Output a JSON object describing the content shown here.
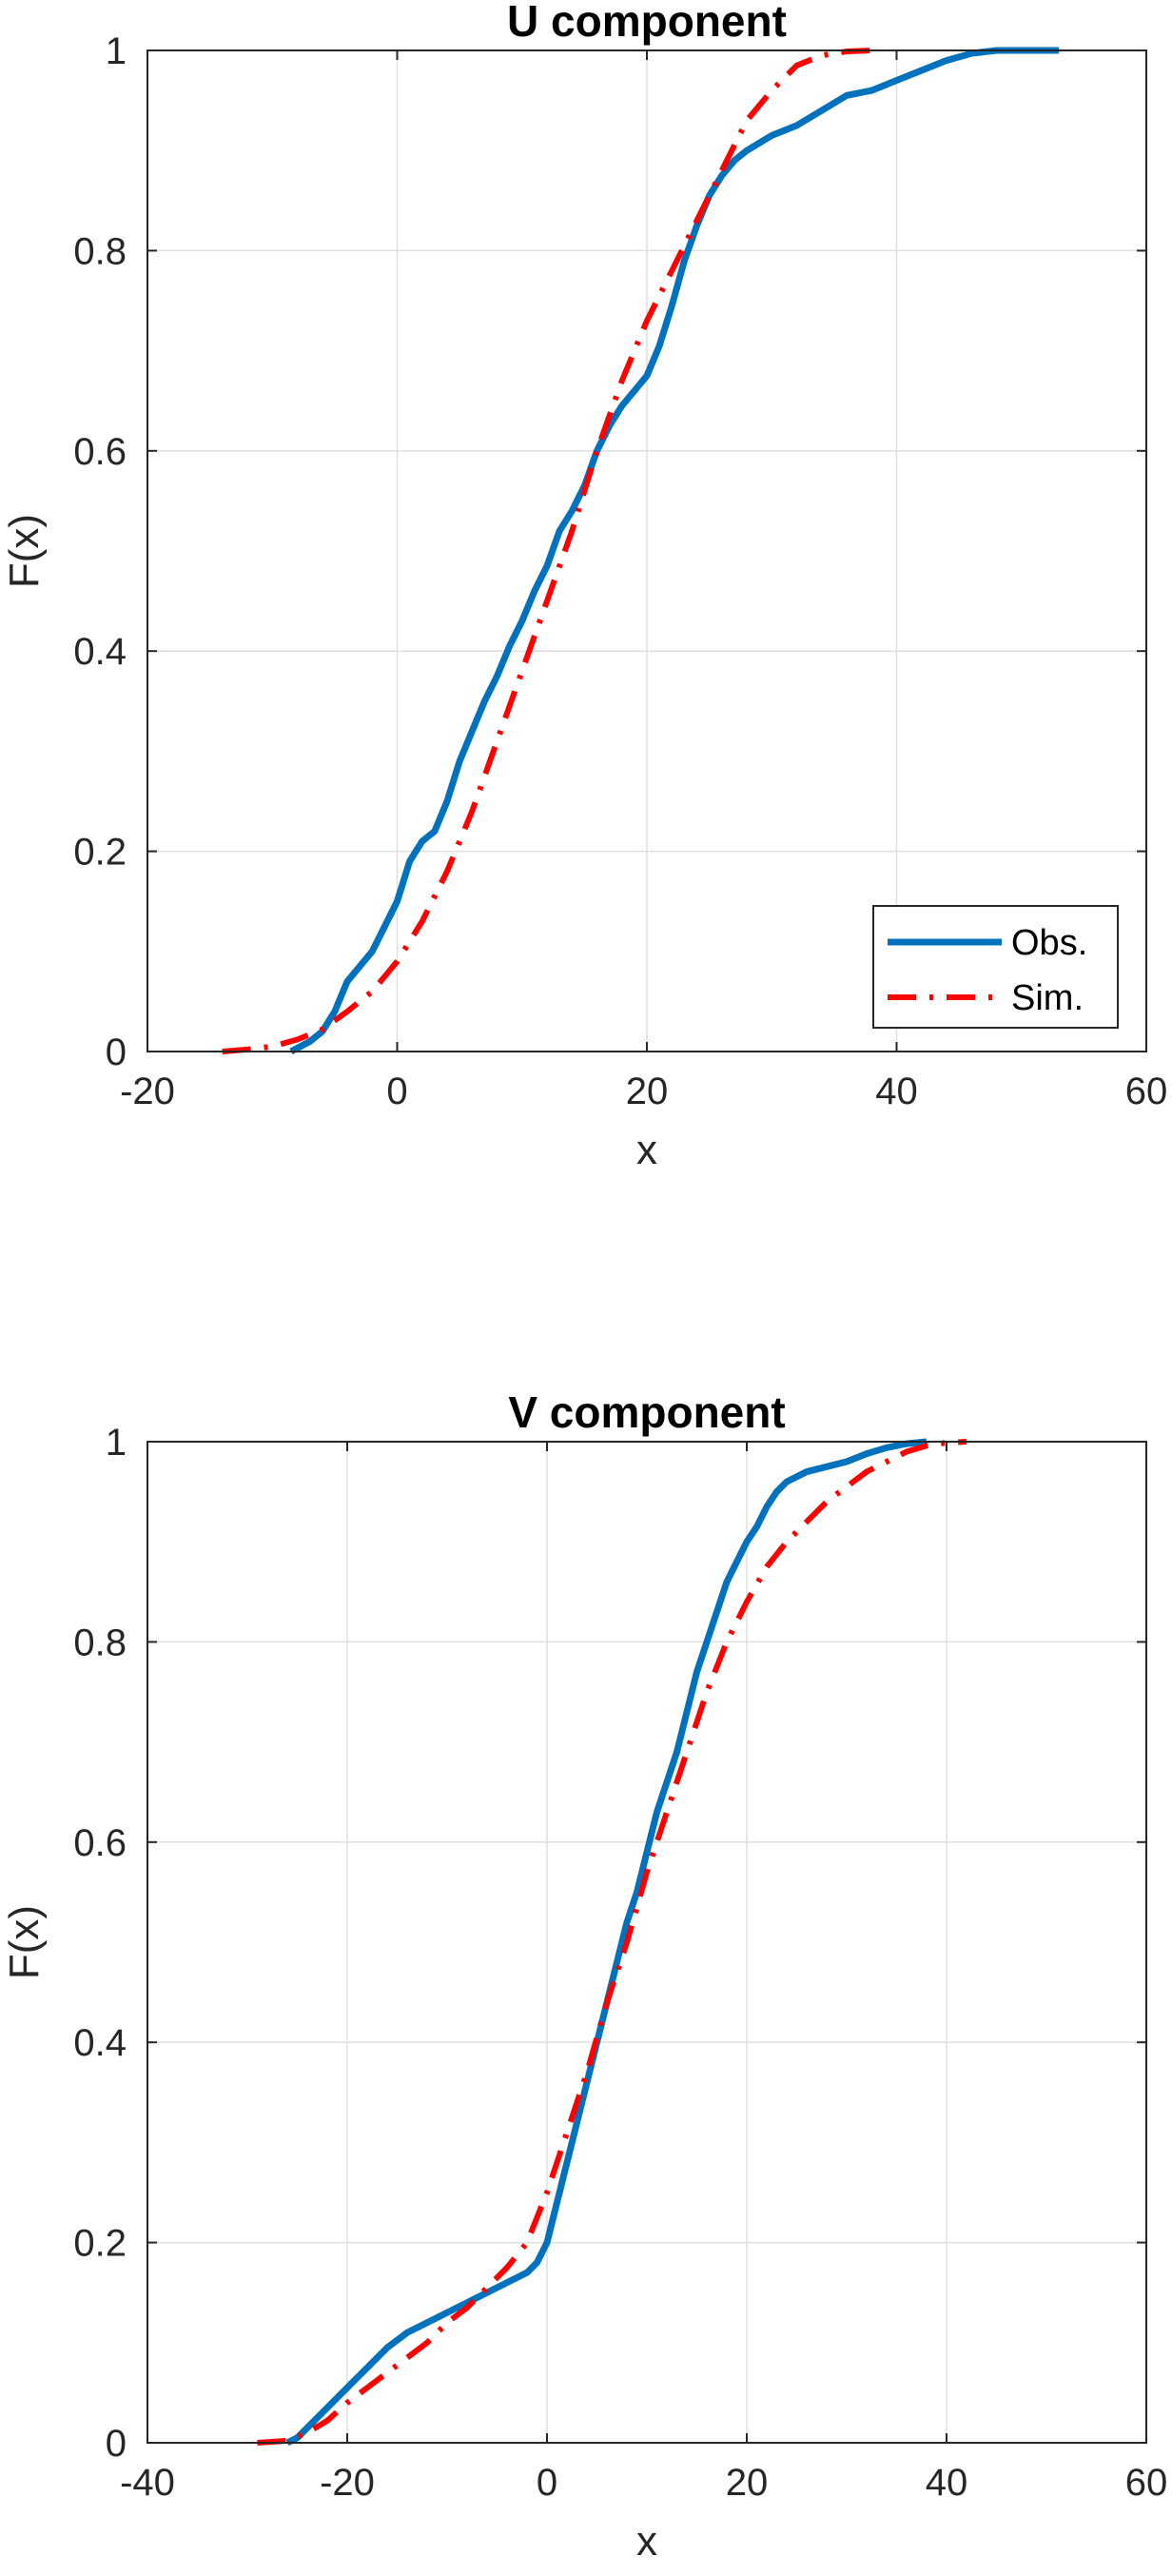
{
  "chart_data": [
    {
      "type": "line",
      "title": "U component",
      "xlabel": "x",
      "ylabel": "F(x)",
      "xlim": [
        -20,
        60
      ],
      "ylim": [
        0,
        1
      ],
      "xticks": [
        -20,
        0,
        20,
        40,
        60
      ],
      "yticks": [
        0,
        0.2,
        0.4,
        0.6,
        0.8,
        1
      ],
      "xtick_labels": [
        "-20",
        "0",
        "20",
        "40",
        "60"
      ],
      "ytick_labels": [
        "0",
        "0.2",
        "0.4",
        "0.6",
        "0.8",
        "1"
      ],
      "grid": true,
      "legend": {
        "show": true,
        "position": "bottom-right"
      },
      "series": [
        {
          "name": "Obs.",
          "color": "#0072BD",
          "style": "solid",
          "x": [
            -8.5,
            -7,
            -6,
            -5,
            -4,
            -3,
            -2,
            -1,
            0,
            1,
            2,
            3,
            4,
            5,
            6,
            7,
            8,
            9,
            10,
            11,
            12,
            13,
            14,
            15,
            16,
            17,
            18,
            19,
            20,
            21,
            22,
            23,
            24,
            25,
            26,
            27,
            28,
            30,
            32,
            34,
            36,
            38,
            40,
            42,
            44,
            46,
            48,
            50,
            53
          ],
          "y": [
            0,
            0.01,
            0.02,
            0.04,
            0.07,
            0.085,
            0.1,
            0.125,
            0.15,
            0.19,
            0.21,
            0.22,
            0.25,
            0.29,
            0.32,
            0.35,
            0.375,
            0.405,
            0.43,
            0.46,
            0.485,
            0.52,
            0.54,
            0.565,
            0.6,
            0.625,
            0.645,
            0.66,
            0.675,
            0.705,
            0.745,
            0.79,
            0.825,
            0.855,
            0.875,
            0.89,
            0.9,
            0.915,
            0.925,
            0.94,
            0.955,
            0.96,
            0.97,
            0.98,
            0.99,
            0.997,
            1,
            1,
            1
          ]
        },
        {
          "name": "Sim.",
          "color": "#FF0000",
          "style": "dash-dot",
          "x": [
            -14,
            -12,
            -10,
            -8,
            -6,
            -4,
            -2,
            0,
            2,
            4,
            6,
            8,
            10,
            12,
            14,
            16,
            18,
            20,
            22,
            24,
            26,
            28,
            30,
            32,
            34,
            36,
            38
          ],
          "y": [
            0,
            0.002,
            0.005,
            0.012,
            0.022,
            0.04,
            0.06,
            0.09,
            0.13,
            0.18,
            0.24,
            0.31,
            0.38,
            0.45,
            0.52,
            0.6,
            0.67,
            0.73,
            0.78,
            0.83,
            0.88,
            0.93,
            0.96,
            0.985,
            0.995,
            0.999,
            1
          ]
        }
      ]
    },
    {
      "type": "line",
      "title": "V component",
      "xlabel": "x",
      "ylabel": "F(x)",
      "xlim": [
        -40,
        60
      ],
      "ylim": [
        0,
        1
      ],
      "xticks": [
        -40,
        -20,
        0,
        20,
        40,
        60
      ],
      "yticks": [
        0,
        0.2,
        0.4,
        0.6,
        0.8,
        1
      ],
      "xtick_labels": [
        "-40",
        "-20",
        "0",
        "20",
        "40",
        "60"
      ],
      "ytick_labels": [
        "0",
        "0.2",
        "0.4",
        "0.6",
        "0.8",
        "1"
      ],
      "grid": true,
      "legend": {
        "show": false
      },
      "series": [
        {
          "name": "Obs.",
          "color": "#0072BD",
          "style": "solid",
          "x": [
            -26,
            -25,
            -24,
            -22,
            -20,
            -18,
            -16,
            -14,
            -12,
            -10,
            -8,
            -6,
            -4,
            -2,
            -1,
            0,
            1,
            2,
            3,
            4,
            5,
            6,
            7,
            8,
            9,
            10,
            11,
            12,
            13,
            14,
            15,
            16,
            17,
            18,
            19,
            20,
            21,
            22,
            23,
            24,
            26,
            28,
            30,
            32,
            34,
            36,
            38
          ],
          "y": [
            0,
            0.005,
            0.015,
            0.035,
            0.055,
            0.075,
            0.095,
            0.11,
            0.12,
            0.13,
            0.14,
            0.15,
            0.16,
            0.17,
            0.18,
            0.2,
            0.24,
            0.28,
            0.32,
            0.36,
            0.4,
            0.44,
            0.48,
            0.52,
            0.55,
            0.59,
            0.63,
            0.66,
            0.69,
            0.73,
            0.77,
            0.8,
            0.83,
            0.86,
            0.88,
            0.9,
            0.915,
            0.935,
            0.95,
            0.96,
            0.97,
            0.975,
            0.98,
            0.988,
            0.994,
            0.998,
            1
          ]
        },
        {
          "name": "Sim.",
          "color": "#FF0000",
          "style": "dash-dot",
          "x": [
            -29,
            -26,
            -24,
            -22,
            -20,
            -18,
            -16,
            -14,
            -12,
            -10,
            -8,
            -6,
            -4,
            -2,
            0,
            2,
            4,
            6,
            8,
            10,
            12,
            14,
            16,
            18,
            20,
            22,
            24,
            26,
            28,
            30,
            32,
            34,
            36,
            38,
            40,
            42
          ],
          "y": [
            0,
            0.002,
            0.01,
            0.022,
            0.04,
            0.055,
            0.07,
            0.085,
            0.1,
            0.12,
            0.135,
            0.155,
            0.175,
            0.2,
            0.25,
            0.31,
            0.37,
            0.44,
            0.5,
            0.57,
            0.63,
            0.69,
            0.75,
            0.8,
            0.84,
            0.875,
            0.9,
            0.92,
            0.94,
            0.955,
            0.97,
            0.98,
            0.99,
            0.996,
            0.999,
            1
          ]
        }
      ]
    }
  ]
}
